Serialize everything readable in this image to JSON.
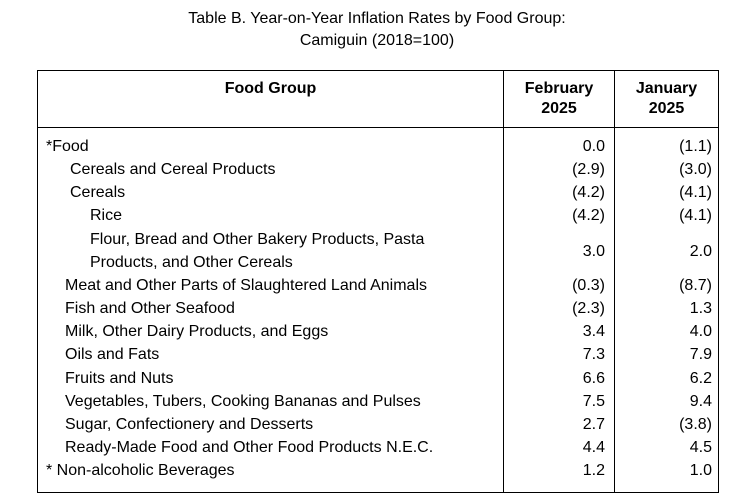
{
  "title": {
    "line1": "Table B. Year-on-Year Inflation Rates by Food Group:",
    "line2": "Camiguin (2018=100)"
  },
  "table": {
    "headers": {
      "food_group": "Food Group",
      "col1_line1": "February",
      "col1_line2": "2025",
      "col2_line1": "January",
      "col2_line2": "2025"
    },
    "rows": [
      {
        "label": "*Food",
        "feb": "0.0",
        "jan": "(1.1)"
      },
      {
        "label": "Cereals and Cereal Products",
        "feb": "(2.9)",
        "jan": "(3.0)"
      },
      {
        "label": "Cereals",
        "feb": "(4.2)",
        "jan": "(4.1)"
      },
      {
        "label": "Rice",
        "feb": "(4.2)",
        "jan": "(4.1)"
      },
      {
        "label_line1": "Flour, Bread and Other Bakery Products, Pasta",
        "label_line2": "Products, and Other Cereals",
        "feb": "3.0",
        "jan": "2.0"
      },
      {
        "label": "Meat and Other Parts of Slaughtered Land Animals",
        "feb": "(0.3)",
        "jan": "(8.7)"
      },
      {
        "label": "Fish and Other Seafood",
        "feb": "(2.3)",
        "jan": "1.3"
      },
      {
        "label": "Milk, Other Dairy Products, and Eggs",
        "feb": "3.4",
        "jan": "4.0"
      },
      {
        "label": "Oils and Fats",
        "feb": "7.3",
        "jan": "7.9"
      },
      {
        "label": "Fruits and Nuts",
        "feb": "6.6",
        "jan": "6.2"
      },
      {
        "label": "Vegetables, Tubers, Cooking Bananas and Pulses",
        "feb": "7.5",
        "jan": "9.4"
      },
      {
        "label": "Sugar, Confectionery and Desserts",
        "feb": "2.7",
        "jan": "(3.8)"
      },
      {
        "label": "Ready-Made Food and Other Food Products N.E.C.",
        "feb": "4.4",
        "jan": "4.5"
      },
      {
        "label": "* Non-alcoholic Beverages",
        "feb": "1.2",
        "jan": "1.0"
      }
    ]
  }
}
